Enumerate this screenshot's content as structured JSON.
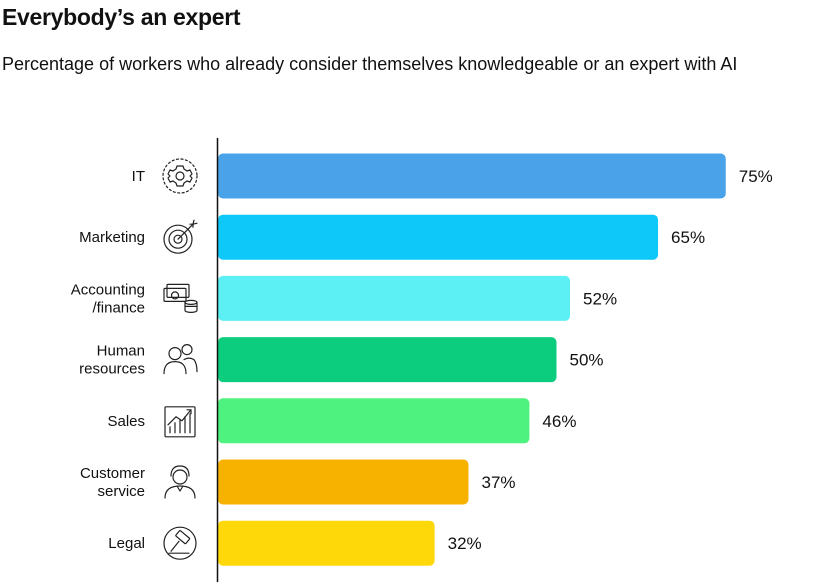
{
  "chart_data": {
    "type": "bar",
    "orientation": "horizontal",
    "title": "Everybody’s an expert",
    "subtitle": "Percentage of workers who already consider themselves knowledgeable or an expert with AI",
    "categories": [
      {
        "lines": [
          "IT"
        ],
        "icon": "gear-icon"
      },
      {
        "lines": [
          "Marketing"
        ],
        "icon": "target-icon"
      },
      {
        "lines": [
          "Accounting",
          "/finance"
        ],
        "icon": "money-icon"
      },
      {
        "lines": [
          "Human",
          "resources"
        ],
        "icon": "people-icon"
      },
      {
        "lines": [
          "Sales"
        ],
        "icon": "growth-chart-icon"
      },
      {
        "lines": [
          "Customer",
          "service"
        ],
        "icon": "headset-icon"
      },
      {
        "lines": [
          "Legal"
        ],
        "icon": "gavel-icon"
      }
    ],
    "values": [
      75,
      65,
      52,
      50,
      46,
      37,
      32
    ],
    "value_labels": [
      "75%",
      "65%",
      "52%",
      "50%",
      "46%",
      "37%",
      "32%"
    ],
    "colors": [
      "#4aa3e8",
      "#0dc8f8",
      "#5cf0f4",
      "#0ccd7e",
      "#4df37e",
      "#f7b200",
      "#ffd80a"
    ],
    "xlim": [
      0,
      100
    ]
  }
}
